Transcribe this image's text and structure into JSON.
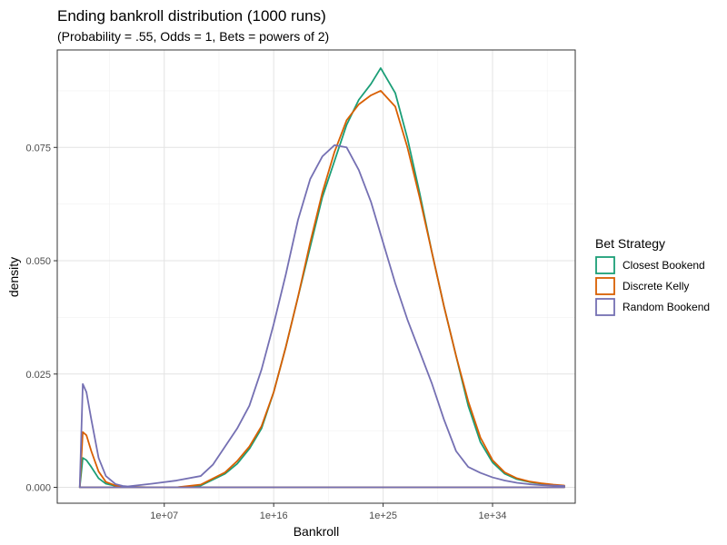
{
  "chart_data": {
    "type": "line",
    "title": "Ending bankroll distribution (1000 runs)",
    "subtitle": "(Probability = .55, Odds = 1, Bets = powers of 2)",
    "xlabel": "Bankroll",
    "ylabel": "density",
    "x_scale": "log10",
    "xlim_log10": [
      -1.8,
      40.8
    ],
    "ylim": [
      -0.0035,
      0.0965
    ],
    "x_ticks": [
      {
        "log10": 7,
        "label": "1e+07"
      },
      {
        "log10": 16,
        "label": "1e+16"
      },
      {
        "log10": 25,
        "label": "1e+25"
      },
      {
        "log10": 34,
        "label": "1e+34"
      }
    ],
    "y_ticks": [
      {
        "value": 0.0,
        "label": "0.000"
      },
      {
        "value": 0.025,
        "label": "0.025"
      },
      {
        "value": 0.05,
        "label": "0.050"
      },
      {
        "value": 0.075,
        "label": "0.075"
      }
    ],
    "grid": true,
    "legend_title": "Bet Strategy",
    "legend_position": "right",
    "series": [
      {
        "name": "Closest Bookend",
        "color": "#1b9e77",
        "x_log10": [
          0.05,
          0.3,
          0.6,
          1.0,
          1.6,
          2.2,
          3.0,
          4.0,
          6.0,
          8.0,
          10.0,
          12.0,
          13.0,
          14.0,
          15.0,
          16.0,
          17.0,
          18.0,
          19.0,
          20.0,
          21.0,
          22.0,
          23.0,
          24.0,
          24.8,
          26.0,
          27.0,
          28.0,
          29.0,
          30.0,
          31.0,
          32.0,
          33.0,
          34.0,
          35.0,
          36.0,
          37.0,
          38.0,
          39.0,
          39.9
        ],
        "density": [
          0.0,
          0.0065,
          0.006,
          0.0045,
          0.002,
          0.0008,
          0.0003,
          0.0001,
          0.0,
          0.0,
          0.0004,
          0.003,
          0.0052,
          0.0085,
          0.013,
          0.021,
          0.031,
          0.042,
          0.053,
          0.064,
          0.072,
          0.08,
          0.0855,
          0.089,
          0.0925,
          0.087,
          0.077,
          0.065,
          0.052,
          0.04,
          0.029,
          0.018,
          0.01,
          0.0055,
          0.003,
          0.0018,
          0.0012,
          0.0008,
          0.0005,
          0.0003
        ]
      },
      {
        "name": "Discrete Kelly",
        "color": "#d95f02",
        "x_log10": [
          0.05,
          0.3,
          0.6,
          1.0,
          1.6,
          2.2,
          3.0,
          4.0,
          6.0,
          8.0,
          10.0,
          12.0,
          13.0,
          14.0,
          15.0,
          16.0,
          17.0,
          18.0,
          19.0,
          20.0,
          21.0,
          22.0,
          23.0,
          24.0,
          24.8,
          26.0,
          27.0,
          28.0,
          29.0,
          30.0,
          31.0,
          32.0,
          33.0,
          34.0,
          35.0,
          36.0,
          37.0,
          38.0,
          39.0,
          39.9
        ],
        "density": [
          0.0,
          0.0122,
          0.0115,
          0.008,
          0.0035,
          0.0012,
          0.0004,
          0.0001,
          0.0,
          0.0,
          0.0006,
          0.0033,
          0.0058,
          0.009,
          0.0135,
          0.021,
          0.031,
          0.042,
          0.054,
          0.065,
          0.074,
          0.081,
          0.0845,
          0.0865,
          0.0875,
          0.084,
          0.075,
          0.064,
          0.052,
          0.04,
          0.029,
          0.019,
          0.011,
          0.006,
          0.0033,
          0.002,
          0.0013,
          0.0009,
          0.0006,
          0.0004
        ]
      },
      {
        "name": "Random Bookend",
        "color": "#7570b3",
        "x_log10": [
          0.05,
          0.3,
          0.6,
          1.0,
          1.6,
          2.2,
          3.0,
          3.6,
          4.0,
          6.0,
          8.0,
          10.0,
          11.0,
          12.0,
          13.0,
          14.0,
          15.0,
          16.0,
          17.0,
          18.0,
          19.0,
          20.0,
          21.0,
          22.0,
          23.0,
          24.0,
          25.0,
          26.0,
          27.0,
          28.0,
          29.0,
          30.0,
          31.0,
          32.0,
          33.0,
          34.0,
          35.0,
          36.0,
          37.0,
          38.0,
          39.0,
          39.9
        ],
        "density": [
          0.0,
          0.0228,
          0.021,
          0.015,
          0.0065,
          0.0025,
          0.0007,
          0.0003,
          0.0002,
          0.0008,
          0.0015,
          0.0025,
          0.005,
          0.009,
          0.013,
          0.018,
          0.026,
          0.036,
          0.047,
          0.059,
          0.068,
          0.073,
          0.0755,
          0.075,
          0.07,
          0.063,
          0.054,
          0.045,
          0.037,
          0.03,
          0.023,
          0.015,
          0.008,
          0.0045,
          0.0032,
          0.0022,
          0.0015,
          0.001,
          0.0007,
          0.0005,
          0.0004,
          0.0003
        ]
      }
    ]
  }
}
